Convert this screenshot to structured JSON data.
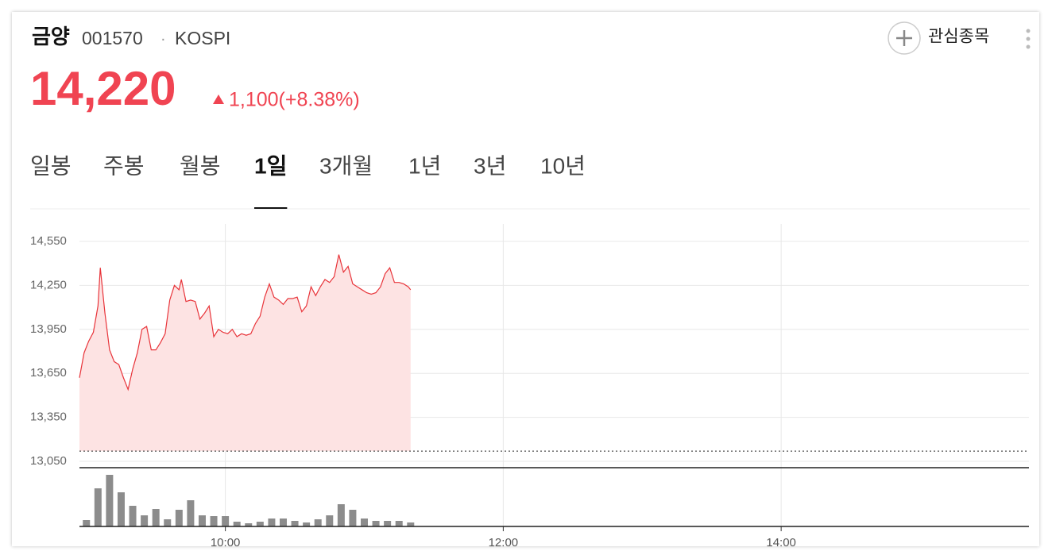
{
  "header": {
    "name": "금양",
    "code": "001570",
    "separator": "·",
    "market": "KOSPI",
    "price": "14,220",
    "change": "1,100(+8.38%)",
    "watch": "관심종목"
  },
  "tabs": {
    "items": [
      "일봉",
      "주봉",
      "월봉",
      "1일",
      "3개월",
      "1년",
      "3년",
      "10년"
    ],
    "selected": 3
  },
  "chart_data": [
    {
      "type": "line",
      "xlim": [
        537,
        947
      ],
      "ylim": [
        13050,
        14550
      ],
      "yticks": [
        {
          "value": 13050,
          "label": "13,050"
        },
        {
          "value": 13350,
          "label": "13,350"
        },
        {
          "value": 13650,
          "label": "13,650"
        },
        {
          "value": 13950,
          "label": "13,950"
        },
        {
          "value": 14250,
          "label": "14,250"
        },
        {
          "value": 14550,
          "label": "14,550"
        }
      ],
      "grid": true,
      "baseline": 13120,
      "x": [
        537,
        539,
        541,
        543,
        545,
        546,
        548,
        550,
        552,
        554,
        556,
        558,
        560,
        562,
        564,
        566,
        568,
        570,
        572,
        574,
        576,
        578,
        580,
        581,
        583,
        585,
        587,
        589,
        591,
        593,
        595,
        597,
        599,
        601,
        603,
        605,
        607,
        609,
        611,
        613,
        615,
        617,
        619,
        621,
        623,
        625,
        627,
        629,
        631,
        633,
        635,
        637,
        639,
        641,
        643,
        645,
        647,
        649,
        651,
        653,
        655,
        657,
        659,
        661,
        663,
        665,
        667,
        669,
        671,
        673,
        675,
        677,
        679,
        680
      ],
      "series": [
        {
          "color": "#e8343a",
          "fill": "#fde3e3",
          "values": [
            13620,
            13790,
            13870,
            13930,
            14110,
            14370,
            14060,
            13810,
            13730,
            13710,
            13620,
            13540,
            13680,
            13790,
            13950,
            13970,
            13810,
            13810,
            13860,
            13920,
            14150,
            14250,
            14220,
            14290,
            14140,
            14150,
            14140,
            14020,
            14060,
            14110,
            13900,
            13950,
            13930,
            13920,
            13950,
            13900,
            13920,
            13910,
            13920,
            13990,
            14040,
            14170,
            14260,
            14170,
            14150,
            14120,
            14160,
            14160,
            14170,
            14070,
            14110,
            14240,
            14180,
            14240,
            14290,
            14270,
            14310,
            14460,
            14340,
            14380,
            14260,
            14240,
            14220,
            14200,
            14190,
            14200,
            14240,
            14330,
            14370,
            14270,
            14270,
            14260,
            14240,
            14220
          ]
        }
      ]
    },
    {
      "type": "bar",
      "xlim": [
        537,
        947
      ],
      "ylim": [
        0,
        70
      ],
      "xticks": [
        {
          "value": 600,
          "label": "10:00"
        },
        {
          "value": 720,
          "label": "12:00"
        },
        {
          "value": 840,
          "label": "14:00"
        }
      ],
      "x": [
        540,
        545,
        550,
        555,
        560,
        565,
        570,
        575,
        580,
        585,
        590,
        595,
        600,
        605,
        610,
        615,
        620,
        625,
        630,
        635,
        640,
        645,
        650,
        655,
        660,
        665,
        670,
        675,
        680
      ],
      "color": "#8c8c8c",
      "values": [
        8,
        48,
        65,
        43,
        26,
        14,
        22,
        9,
        21,
        33,
        14,
        13,
        13,
        6,
        4,
        6,
        10,
        10,
        7,
        5,
        9,
        14,
        28,
        21,
        10,
        7,
        7,
        7,
        5
      ]
    }
  ]
}
